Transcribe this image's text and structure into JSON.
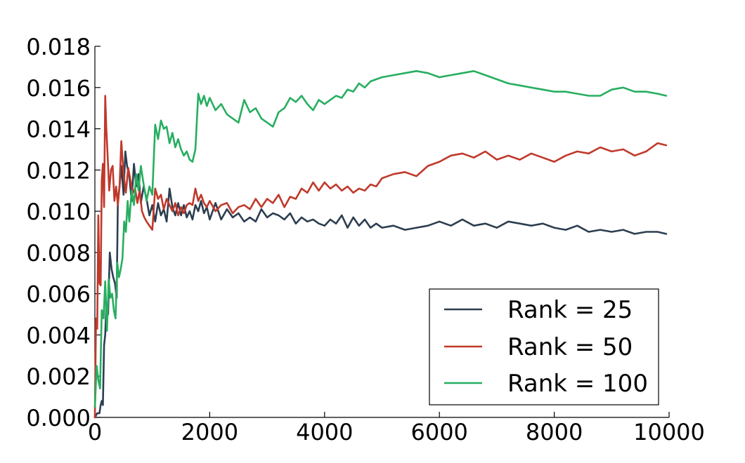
{
  "chart_data": {
    "type": "line",
    "title": "",
    "xlabel": "",
    "ylabel": "",
    "xlim": [
      0,
      10000
    ],
    "ylim": [
      0,
      0.018
    ],
    "x_ticks": [
      0,
      2000,
      4000,
      6000,
      8000,
      10000
    ],
    "x_tick_labels": [
      "0",
      "2000",
      "4000",
      "6000",
      "8000",
      "10000"
    ],
    "y_ticks": [
      0,
      0.002,
      0.004,
      0.006,
      0.008,
      0.01,
      0.012,
      0.014,
      0.016,
      0.018
    ],
    "y_tick_labels": [
      "0.000",
      "0.002",
      "0.004",
      "0.006",
      "0.008",
      "0.010",
      "0.012",
      "0.014",
      "0.016",
      "0.018"
    ],
    "grid": false,
    "legend_position": "bottom-right",
    "series": [
      {
        "name": "Rank = 25",
        "color": "#2c3e50",
        "x": [
          0,
          40,
          80,
          100,
          120,
          140,
          160,
          180,
          200,
          230,
          260,
          290,
          320,
          350,
          380,
          400,
          430,
          460,
          500,
          530,
          560,
          600,
          640,
          680,
          720,
          760,
          800,
          850,
          900,
          950,
          1000,
          1050,
          1100,
          1150,
          1200,
          1250,
          1300,
          1350,
          1400,
          1450,
          1500,
          1550,
          1600,
          1650,
          1700,
          1750,
          1800,
          1850,
          1900,
          1950,
          2000,
          2100,
          2200,
          2300,
          2400,
          2500,
          2600,
          2700,
          2800,
          2900,
          3000,
          3100,
          3200,
          3300,
          3400,
          3500,
          3600,
          3700,
          3800,
          3900,
          4000,
          4100,
          4200,
          4300,
          4400,
          4500,
          4600,
          4700,
          4800,
          4900,
          5000,
          5200,
          5400,
          5600,
          5800,
          6000,
          6200,
          6400,
          6600,
          6800,
          7000,
          7200,
          7400,
          7600,
          7800,
          8000,
          8200,
          8400,
          8600,
          8800,
          9000,
          9200,
          9400,
          9600,
          9800,
          9950
        ],
        "y": [
          0.0,
          0.0002,
          0.0002,
          0.0006,
          0.0008,
          0.0006,
          0.0035,
          0.004,
          0.0055,
          0.005,
          0.008,
          0.0072,
          0.0068,
          0.0065,
          0.0058,
          0.0105,
          0.0112,
          0.0122,
          0.0108,
          0.0129,
          0.0122,
          0.0117,
          0.0105,
          0.0123,
          0.0112,
          0.0118,
          0.0104,
          0.0112,
          0.0106,
          0.0098,
          0.0103,
          0.0095,
          0.0104,
          0.0098,
          0.0101,
          0.0095,
          0.0111,
          0.0102,
          0.0098,
          0.0104,
          0.0098,
          0.0103,
          0.0097,
          0.01,
          0.0096,
          0.0103,
          0.01,
          0.0105,
          0.0099,
          0.0102,
          0.0096,
          0.0104,
          0.0096,
          0.0101,
          0.0097,
          0.0099,
          0.0095,
          0.0097,
          0.0095,
          0.0101,
          0.0097,
          0.0099,
          0.0098,
          0.0096,
          0.0099,
          0.0094,
          0.0097,
          0.0095,
          0.0096,
          0.0094,
          0.0093,
          0.0096,
          0.0094,
          0.0098,
          0.0092,
          0.0097,
          0.0093,
          0.0096,
          0.0092,
          0.0094,
          0.0092,
          0.0093,
          0.0091,
          0.0092,
          0.0093,
          0.0095,
          0.0093,
          0.0096,
          0.0093,
          0.0094,
          0.0092,
          0.0095,
          0.0094,
          0.0093,
          0.0094,
          0.0092,
          0.0091,
          0.0093,
          0.009,
          0.0091,
          0.009,
          0.0091,
          0.0089,
          0.009,
          0.009,
          0.0089
        ]
      },
      {
        "name": "Rank = 50",
        "color": "#c0392b",
        "x": [
          0,
          20,
          40,
          60,
          80,
          100,
          120,
          140,
          160,
          180,
          200,
          220,
          250,
          280,
          310,
          340,
          370,
          400,
          430,
          460,
          500,
          540,
          580,
          620,
          660,
          700,
          740,
          780,
          820,
          860,
          900,
          950,
          1000,
          1050,
          1100,
          1150,
          1200,
          1250,
          1300,
          1350,
          1400,
          1450,
          1500,
          1550,
          1600,
          1650,
          1700,
          1750,
          1800,
          1850,
          1900,
          1950,
          2000,
          2100,
          2200,
          2300,
          2400,
          2500,
          2600,
          2700,
          2800,
          2900,
          3000,
          3100,
          3200,
          3300,
          3400,
          3500,
          3600,
          3700,
          3800,
          3900,
          4000,
          4100,
          4200,
          4300,
          4400,
          4500,
          4600,
          4700,
          4800,
          4900,
          5000,
          5200,
          5400,
          5600,
          5800,
          6000,
          6200,
          6400,
          6600,
          6800,
          7000,
          7200,
          7400,
          7600,
          7800,
          8000,
          8200,
          8400,
          8600,
          8800,
          9000,
          9200,
          9400,
          9600,
          9800,
          9950
        ],
        "y": [
          0.0,
          0.0048,
          0.0043,
          0.0098,
          0.0065,
          0.0064,
          0.0115,
          0.0123,
          0.0102,
          0.0156,
          0.014,
          0.0128,
          0.011,
          0.012,
          0.0122,
          0.0105,
          0.0112,
          0.0103,
          0.0112,
          0.0134,
          0.0118,
          0.0109,
          0.0121,
          0.0115,
          0.0109,
          0.0111,
          0.0104,
          0.011,
          0.01,
          0.0097,
          0.0095,
          0.0093,
          0.0091,
          0.0111,
          0.0106,
          0.0108,
          0.0101,
          0.0106,
          0.0103,
          0.01,
          0.0104,
          0.0098,
          0.0102,
          0.0099,
          0.0103,
          0.0104,
          0.0103,
          0.0111,
          0.0105,
          0.0108,
          0.0104,
          0.0102,
          0.0105,
          0.01,
          0.0103,
          0.0104,
          0.0099,
          0.0102,
          0.0103,
          0.0101,
          0.0106,
          0.0102,
          0.0106,
          0.0104,
          0.0108,
          0.0102,
          0.0107,
          0.0106,
          0.0111,
          0.0109,
          0.0114,
          0.011,
          0.0114,
          0.0111,
          0.0113,
          0.011,
          0.0112,
          0.0109,
          0.0111,
          0.011,
          0.0113,
          0.0112,
          0.0116,
          0.0118,
          0.0119,
          0.0117,
          0.0122,
          0.0124,
          0.0127,
          0.0128,
          0.0126,
          0.0129,
          0.0125,
          0.0127,
          0.0125,
          0.0128,
          0.0126,
          0.0124,
          0.0127,
          0.0129,
          0.0128,
          0.0131,
          0.0129,
          0.013,
          0.0127,
          0.0129,
          0.0133,
          0.0132
        ]
      },
      {
        "name": "Rank = 100",
        "color": "#27ae60",
        "x": [
          0,
          30,
          60,
          90,
          120,
          150,
          180,
          210,
          240,
          270,
          300,
          330,
          360,
          390,
          420,
          450,
          480,
          510,
          540,
          570,
          600,
          640,
          680,
          720,
          760,
          800,
          850,
          900,
          950,
          1000,
          1050,
          1100,
          1150,
          1200,
          1250,
          1300,
          1350,
          1400,
          1450,
          1500,
          1550,
          1600,
          1650,
          1700,
          1750,
          1800,
          1850,
          1900,
          1950,
          2000,
          2100,
          2200,
          2300,
          2400,
          2500,
          2600,
          2700,
          2800,
          2900,
          3000,
          3100,
          3200,
          3300,
          3400,
          3500,
          3600,
          3700,
          3800,
          3900,
          4000,
          4100,
          4200,
          4300,
          4400,
          4500,
          4600,
          4700,
          4800,
          4900,
          5000,
          5200,
          5400,
          5600,
          5800,
          6000,
          6200,
          6400,
          6600,
          6800,
          7000,
          7200,
          7400,
          7600,
          7800,
          8000,
          8200,
          8400,
          8600,
          8800,
          9000,
          9200,
          9400,
          9600,
          9800,
          9950
        ],
        "y": [
          0.0005,
          0.0025,
          0.0018,
          0.0014,
          0.0052,
          0.0048,
          0.0066,
          0.0042,
          0.0067,
          0.0058,
          0.006,
          0.0052,
          0.0048,
          0.0075,
          0.0068,
          0.0072,
          0.0077,
          0.0095,
          0.009,
          0.0105,
          0.0095,
          0.011,
          0.0103,
          0.0118,
          0.011,
          0.0122,
          0.0113,
          0.0105,
          0.0112,
          0.0108,
          0.0142,
          0.0135,
          0.0144,
          0.014,
          0.0141,
          0.0133,
          0.0138,
          0.0131,
          0.0135,
          0.013,
          0.0127,
          0.0129,
          0.0125,
          0.0124,
          0.013,
          0.0157,
          0.0152,
          0.0156,
          0.0151,
          0.0155,
          0.0149,
          0.0152,
          0.0147,
          0.0145,
          0.0143,
          0.0154,
          0.0148,
          0.015,
          0.0145,
          0.0143,
          0.0141,
          0.0148,
          0.015,
          0.0155,
          0.0153,
          0.0156,
          0.0152,
          0.0149,
          0.0154,
          0.0152,
          0.0154,
          0.0156,
          0.0155,
          0.0159,
          0.0158,
          0.0162,
          0.016,
          0.0163,
          0.0164,
          0.0165,
          0.0166,
          0.0167,
          0.0168,
          0.0167,
          0.0165,
          0.0166,
          0.0167,
          0.0168,
          0.0166,
          0.0164,
          0.0162,
          0.0161,
          0.016,
          0.0159,
          0.0158,
          0.0158,
          0.0157,
          0.0156,
          0.0156,
          0.0159,
          0.016,
          0.0158,
          0.0158,
          0.0157,
          0.0156
        ]
      }
    ]
  }
}
